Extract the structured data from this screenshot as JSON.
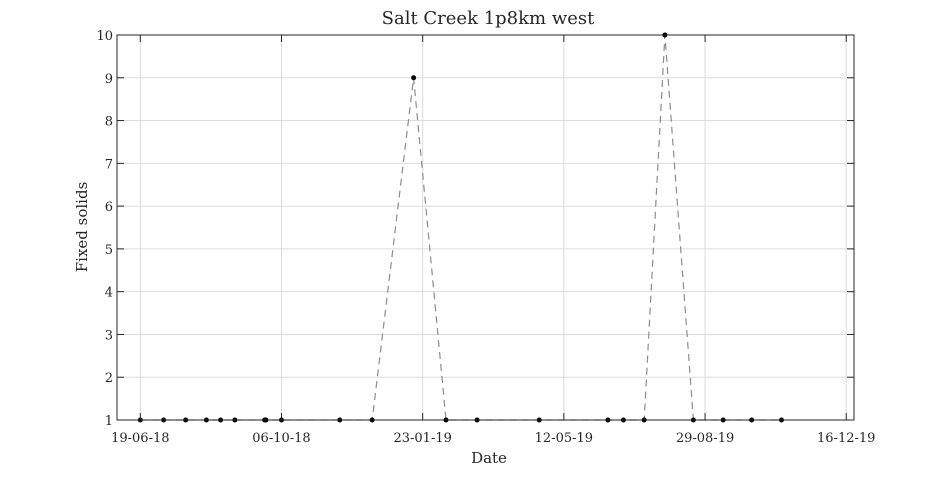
{
  "chart_data": {
    "type": "line",
    "title": "Salt Creek 1p8km west",
    "xlabel": "Date",
    "ylabel": "Fixed solids",
    "ylim": [
      1,
      10
    ],
    "xlim": [
      "2018-06-01",
      "2019-12-22"
    ],
    "grid": true,
    "x_ticks": [
      {
        "date": "2018-06-19",
        "label": "19-06-18"
      },
      {
        "date": "2018-10-06",
        "label": "06-10-18"
      },
      {
        "date": "2019-01-23",
        "label": "23-01-19"
      },
      {
        "date": "2019-05-12",
        "label": "12-05-19"
      },
      {
        "date": "2019-08-29",
        "label": "29-08-19"
      },
      {
        "date": "2019-12-16",
        "label": "16-12-19"
      }
    ],
    "y_ticks": [
      1,
      2,
      3,
      4,
      5,
      6,
      7,
      8,
      9,
      10
    ],
    "series": [
      {
        "line_style": "dashed",
        "line_color": "#8c8c8c",
        "marker_color": "#000000",
        "points": [
          {
            "x": "2018-06-19",
            "y": 1
          },
          {
            "x": "2018-07-07",
            "y": 1
          },
          {
            "x": "2018-07-24",
            "y": 1
          },
          {
            "x": "2018-08-09",
            "y": 1
          },
          {
            "x": "2018-08-20",
            "y": 1
          },
          {
            "x": "2018-08-31",
            "y": 1
          },
          {
            "x": "2018-09-23",
            "y": 1
          },
          {
            "x": "2018-09-24",
            "y": 1
          },
          {
            "x": "2018-10-06",
            "y": 1
          },
          {
            "x": "2018-11-20",
            "y": 1
          },
          {
            "x": "2018-12-15",
            "y": 1
          },
          {
            "x": "2019-01-16",
            "y": 9
          },
          {
            "x": "2019-02-10",
            "y": 1
          },
          {
            "x": "2019-03-06",
            "y": 1
          },
          {
            "x": "2019-04-23",
            "y": 1
          },
          {
            "x": "2019-06-15",
            "y": 1
          },
          {
            "x": "2019-06-27",
            "y": 1
          },
          {
            "x": "2019-07-13",
            "y": 1
          },
          {
            "x": "2019-07-29",
            "y": 10
          },
          {
            "x": "2019-08-20",
            "y": 1
          },
          {
            "x": "2019-09-12",
            "y": 1
          },
          {
            "x": "2019-10-04",
            "y": 1
          },
          {
            "x": "2019-10-27",
            "y": 1
          }
        ]
      }
    ]
  }
}
